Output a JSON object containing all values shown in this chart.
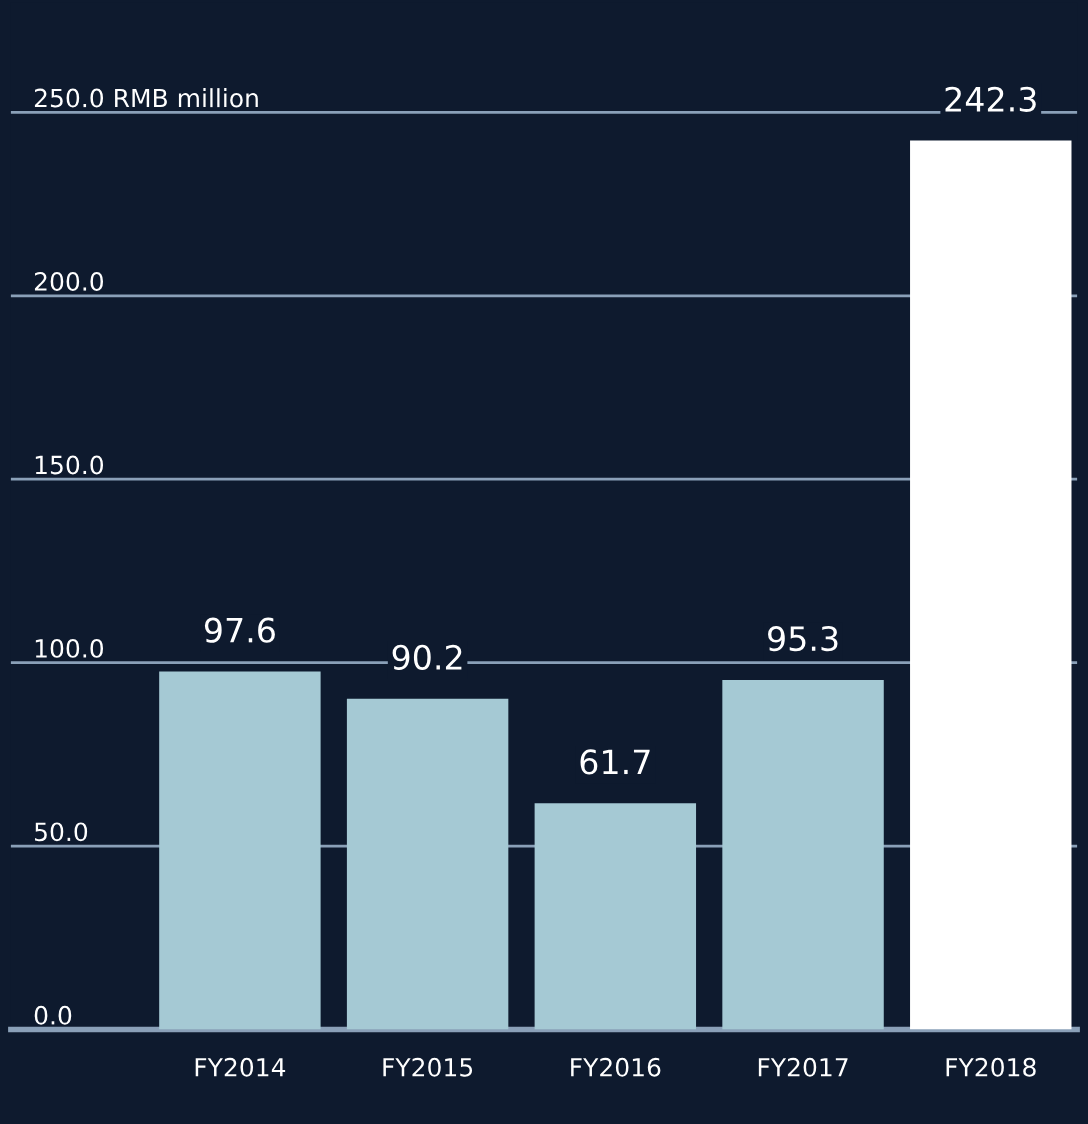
{
  "chart_data": {
    "type": "bar",
    "categories": [
      "FY2014",
      "FY2015",
      "FY2016",
      "FY2017",
      "FY2018"
    ],
    "values": [
      97.6,
      90.2,
      61.7,
      95.3,
      242.3
    ],
    "colors": [
      "#a5c9d4",
      "#a5c9d4",
      "#a5c9d4",
      "#a5c9d4",
      "#ffffff"
    ],
    "ylim": [
      0,
      280
    ],
    "yticks": [
      {
        "value": 0,
        "label": "0.0"
      },
      {
        "value": 50,
        "label": "50.0"
      },
      {
        "value": 100,
        "label": "100.0"
      },
      {
        "value": 150,
        "label": "150.0"
      },
      {
        "value": 200,
        "label": "200.0"
      },
      {
        "value": 250,
        "label": "250.0 RMB million"
      }
    ],
    "grid": "y",
    "data_labels": true
  }
}
